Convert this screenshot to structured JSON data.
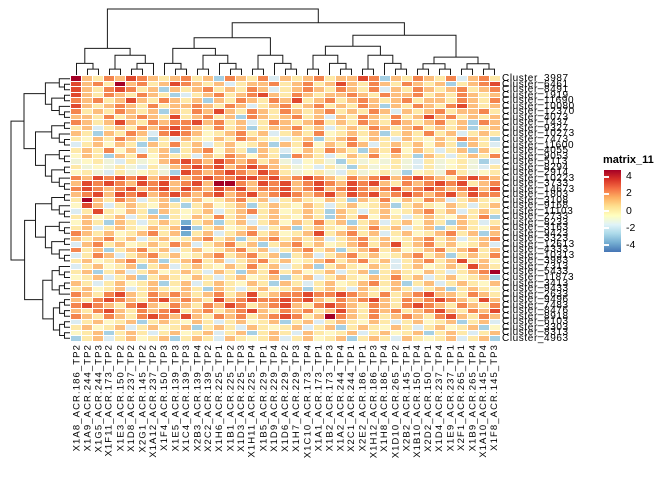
{
  "legend": {
    "title": "matrix_11",
    "ticks": [
      4,
      2,
      0,
      -2,
      -4
    ],
    "range_top": 4.8,
    "range_bottom": -4.8,
    "gradient": [
      "#a50026",
      "#d73027",
      "#f46d43",
      "#fdae61",
      "#fee090",
      "#ffffbf",
      "#e0f3f8",
      "#abd9e9",
      "#74add1",
      "#4575b4"
    ]
  },
  "chart_data": {
    "type": "heatmap",
    "title": "matrix_11",
    "clim": [
      -4,
      4
    ],
    "columns": [
      "X1A8_ACR.186_TP2",
      "X1A9_ACR.244_TP2",
      "X1G5_ACR.244_TP3",
      "X1F11_ACR.173_TP2",
      "X1E3_ACR.150_TP2",
      "X1D8_ACR.237_TP2",
      "X2G1_ACR.145_TP2",
      "X1A12_ACR.237_TP2",
      "X1F4_ACR.150_TP3",
      "X1E5_ACR.139_TP3",
      "X1C4_ACR.139_TP3",
      "X2B3_ACR.139_TP4",
      "X2C2_ACR.139_TP2",
      "X1H6_ACR.225_TP1",
      "X1B1_ACR.225_TP2",
      "X1D3_ACR.225_TP3",
      "X1H11_ACR.225_TP4",
      "X1B5_ACR.229_TP1",
      "X1D9_ACR.229_TP4",
      "X1D6_ACR.229_TP2",
      "X1H7_ACR.229_TP3",
      "X1C10_ACR.173_TP4",
      "X1A1_ACR.173_TP1",
      "X1B2_ACR.173_TP3",
      "X1A2_ACR.244_TP4",
      "X2C1_ACR.244_TP1",
      "X2E2_ACR.186_TP1",
      "X1H12_ACR.186_TP3",
      "X1H8_ACR.186_TP4",
      "X1D10_ACR.265_TP2",
      "X2B2_ACR.145_TP1",
      "X1B10_ACR.150_TP4",
      "X2D2_ACR.150_TP1",
      "X1D4_ACR.237_TP4",
      "X1E9_ACR.237_TP1",
      "X2F1_ACR.265_TP1",
      "X1B9_ACR.265_TP4",
      "X1A10_ACR.145_TP4",
      "X1F8_ACR.145_TP3"
    ],
    "rows": [
      "Cluster_3987",
      "Cluster_6461",
      "Cluster_8491",
      "Cluster_1919",
      "Cluster_11690",
      "Cluster_10080",
      "Cluster_12370",
      "Cluster_4073",
      "Cluster_1437",
      "Cluster_9327",
      "Cluster_10273",
      "Cluster_7473",
      "Cluster_11600",
      "Cluster_4055",
      "Cluster_9053",
      "Cluster_5113",
      "Cluster_8294",
      "Cluster_2914",
      "Cluster_10223",
      "Cluster_3733",
      "Cluster_14673",
      "Cluster_1803",
      "Cluster_3108",
      "Cluster_9168",
      "Cluster_11103",
      "Cluster_2733",
      "Cluster_8233",
      "Cluster_3163",
      "Cluster_9423",
      "Cluster_3323",
      "Cluster_12613",
      "Cluster_4333",
      "Cluster_10313",
      "Cluster_3983",
      "Cluster_7313",
      "Cluster_5433",
      "Cluster_11873",
      "Cluster_3413",
      "Cluster_9433",
      "Cluster_2633",
      "Cluster_9496",
      "Cluster_7483",
      "Cluster_8476",
      "Cluster_8918",
      "Cluster_6103",
      "Cluster_3303",
      "Cluster_8313",
      "Cluster_4963"
    ],
    "buckets": {
      "R": {
        "value": 3.8,
        "color": "#a50026"
      },
      "r": {
        "value": 2.4,
        "color": "#e0492e"
      },
      "o": {
        "value": 1.4,
        "color": "#f4854e"
      },
      "m": {
        "value": 0.8,
        "color": "#fdbe7d"
      },
      "y": {
        "value": 0.4,
        "color": "#fee9a9"
      },
      "w": {
        "value": 0.1,
        "color": "#fef7c5"
      },
      "g": {
        "value": -0.1,
        "color": "#eff3d8"
      },
      "c": {
        "value": -0.6,
        "color": "#dcecf2"
      },
      "b": {
        "value": -1.4,
        "color": "#a6d0e4"
      },
      "B": {
        "value": -2.4,
        "color": "#74add1"
      },
      "N": {
        "value": -3.8,
        "color": "#4575b4"
      }
    },
    "matrix_codes": [
      "Rmyomromymoymbomyocmymoymmrobmyomyocmoy",
      "rmoyRmoymromymcymmoymoymrmyomyomymbymor",
      "rmyoroymbmymoymyomcymomyomyocmyomymoymo",
      "rmyomyomybcymoymormyomymmomyommoymyomym",
      "omoymrmyomymbmyomyomrymoymomymoymmyomyo",
      "rmymomyoymmomyomcymoymoymyombmyomyormym",
      "oymyomymbmyomrmyomyomymoymyomcmymoymmoy",
      "mmyoymomyrymoymbomymoymcmyomyoymrmoymym",
      "omymrmyomoormoymcyomymoymyomyomymoymbom",
      "ymcymyomoromyoymbymmoymcymyomymoymymbym",
      "mybmyomcoromwymoymcymyowymymbymyoymcymy",
      "ywmyomybycmywmyomywcymbymowmycmywmyomyb",
      "cymwmybmyoymcymwymbmyowmyomcymymwmybmyc",
      "ymyowmcymbymowmybmycwmyomybmyowmycymbmw",
      "wmybmyowmyycmyomwmybomycwmyowmybmycymyo",
      "gwygcygwmoromromoymgcwygbygwgygcygwygbc",
      "ygwgygcygmorormoromygwcygbygwygcygwygcy",
      "wygcygwygbromoromroygwygcygwygbwygoygwy",
      "omrorormormoroorrormoromyomormoromyorom",
      "mroromrormormRRomrormoromrormyomororymo",
      "oromormormromrormoormormoromormoromormr",
      "mormrormoromormormoromormrormoromormroo",
      "yRmyomcymbymwymoymcymywmybmyowmyomcymyw",
      "wrmcymywmybymwymbymywmycymwymbymywmycym",
      "cyrywmybmywymcymoymwymybmycymwymoymcymy",
      "ymwymcymbywmyoymcymywmybmyowmycymywmyob",
      "wmybmycymyBymbymcymwmyoymbymcymwmybmycy",
      "ymcymywmymNbymwymcymbymywmyoymcymbymywm",
      "omymwymoymBymcymoymwymrymoymcymwymoymbm",
      "mymoymcymwymoymbymoymymcymoymwymoymcymo",
      "cmoymwymyomcymoymbymoymwymoymrymoymwymc",
      "oymbymoymcymwymoymcymoymbymoymwymoymoym",
      "cyomcymoymwymoymoymbymcymoymwymoymbymyo",
      "ymwymoymbymoymcymoymwymoymoymcymoymrymw",
      "cymwymbymcymywmyoymcymbymywmycymwymyrmy",
      "ymbymcymwymycmybmyoymwymcymbymywmycymoR",
      "wymcymbymywmycymwymbymcymywmyoymcymwymb",
      "mycymwymbymcymywmybmycymwymoymbymcymywm",
      "ymwymcymywmybmycymwymbymycmywmycymbymyw",
      "omyormyomomymoymrymoorooromyoymormmyomy",
      "myoromyormomyrmoroorormyomormyomoromyrm",
      "oromyormyomyomroymormyoromyomyoromyomyo",
      "myormyomorymoymormyomoymrmyomoymormyomr",
      "omyomyoromrmyomoymoroymRomyoymomyormyom",
      "cymwymbymywmycymwymbymcymywmycymwymbymc",
      "ymwymcymwymbymycmywymcymbymywmycymwymbw",
      "wymbymycymwymcymbymycmywymcymwymbymycym",
      "bymcymwymbymycmywymcymwymbymycmywymcymb"
    ],
    "column_dendrogram": [
      [
        [
          0,
          [
            1,
            2
          ]
        ],
        [
          [
            3,
            4
          ],
          [
            [
              5,
              6
            ],
            7
          ]
        ]
      ],
      [
        [
          [
            [
              8,
              [
                9,
                10
              ]
            ],
            [
              [
                11,
                12
              ],
              [
                13,
                [
                  14,
                  15
                ]
              ]
            ]
          ],
          [
            [
              16,
              17
            ],
            [
              18,
              [
                19,
                20
              ]
            ]
          ]
        ],
        [
          [
            [
              [
                21,
                22
              ],
              [
                23,
                [
                  24,
                  25
                ]
              ]
            ],
            [
              [
                26,
                27
              ],
              [
                28,
                [
                  29,
                  30
                ]
              ]
            ]
          ],
          [
            [
              [
                31,
                32
              ],
              [
                33,
                34
              ]
            ],
            [
              [
                35,
                36
              ],
              [
                37,
                38
              ]
            ]
          ]
        ]
      ]
    ],
    "row_dendrogram": [
      [
        [
          [
            0,
            [
              1,
              2
            ]
          ],
          [
            [
              3,
              4
            ],
            [
              5,
              [
                6,
                7
              ]
            ]
          ]
        ],
        [
          [
            [
              8,
              9
            ],
            [
              10,
              [
                11,
                12
              ]
            ]
          ],
          [
            [
              13,
              [
                14,
                15
              ]
            ],
            [
              [
                16,
                17
              ],
              [
                18,
                [
                  19,
                  20
                ]
              ]
            ]
          ]
        ]
      ],
      [
        [
          [
            [
              21,
              22
            ],
            [
              23,
              [
                24,
                25
              ]
            ]
          ],
          [
            [
              26,
              [
                27,
                28
              ]
            ],
            [
              [
                29,
                30
              ],
              [
                31,
                [
                  32,
                  33
                ]
              ]
            ]
          ]
        ],
        [
          [
            [
              34,
              [
                35,
                36
              ]
            ],
            [
              [
                37,
                38
              ],
              39
            ]
          ],
          [
            [
              [
                40,
                41
              ],
              [
                42,
                43
              ]
            ],
            [
              [
                44,
                45
              ],
              [
                46,
                47
              ]
            ]
          ]
        ]
      ]
    ]
  }
}
